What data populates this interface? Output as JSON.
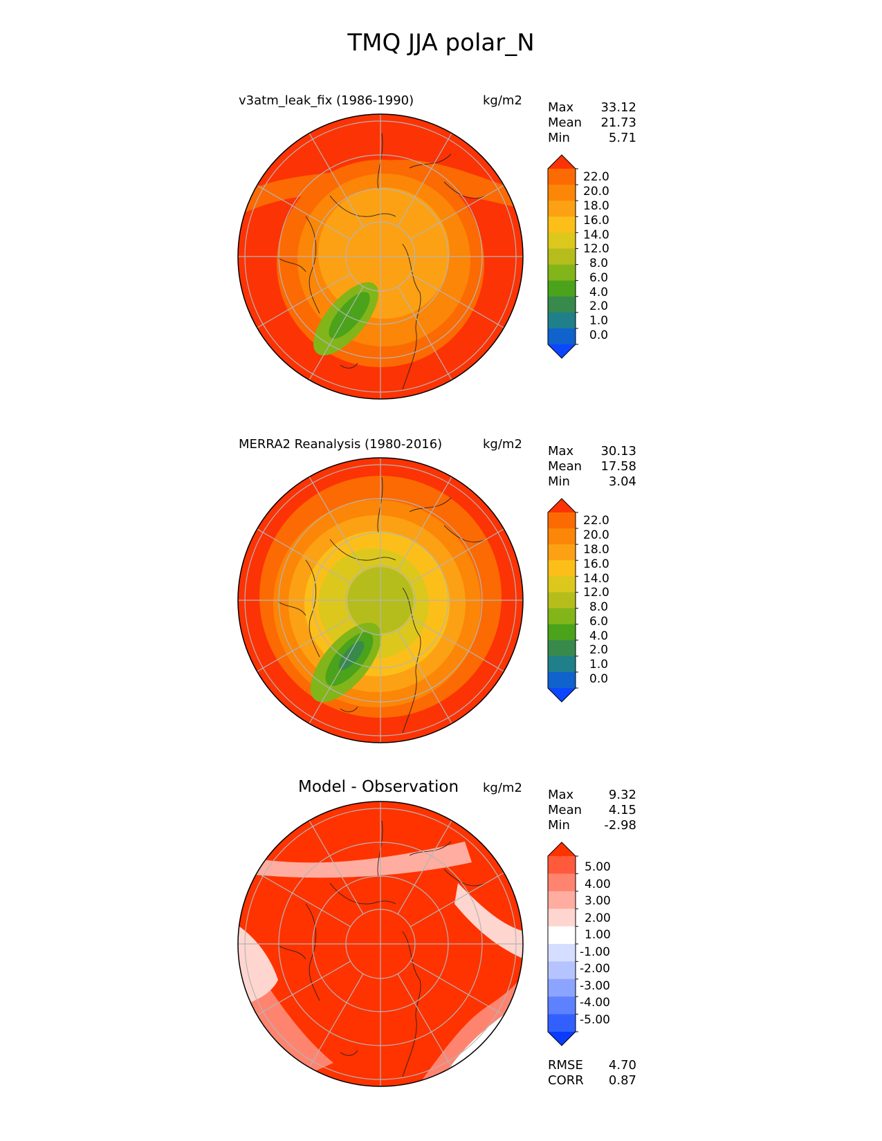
{
  "figure_title": "TMQ JJA polar_N",
  "colors": {
    "seq": [
      "#0c47ff",
      "#1062cc",
      "#1f7f8a",
      "#378a4c",
      "#4aa31a",
      "#82b51a",
      "#b5bd1c",
      "#dcc81c",
      "#fcbf19",
      "#fca114",
      "#fc8607",
      "#fc6a03",
      "#fc3304"
    ],
    "diff": [
      "#0a3bff",
      "#3160ff",
      "#5d81ff",
      "#8ba4ff",
      "#b5c4ff",
      "#d6deff",
      "#ffffff",
      "#ffd6cf",
      "#ffada0",
      "#ff8470",
      "#ff5a3c",
      "#ff3300"
    ]
  },
  "chart_data": [
    {
      "type": "heatmap",
      "name": "test",
      "title": "v3atm_leak_fix (1986-1990)",
      "units": "kg/m2",
      "stats": [
        {
          "label": "Max",
          "value": "33.12"
        },
        {
          "label": "Mean",
          "value": "21.73"
        },
        {
          "label": "Min",
          "value": "5.71"
        }
      ],
      "colorbar_ticks": [
        "22.0",
        "20.0",
        "18.0",
        "16.0",
        "14.0",
        "12.0",
        "8.0",
        "6.0",
        "4.0",
        "2.0",
        "1.0",
        "0.0"
      ],
      "projection": "north polar stereographic",
      "colormap": "seq"
    },
    {
      "type": "heatmap",
      "name": "reference",
      "title": "MERRA2 Reanalysis (1980-2016)",
      "units": "kg/m2",
      "stats": [
        {
          "label": "Max",
          "value": "30.13"
        },
        {
          "label": "Mean",
          "value": "17.58"
        },
        {
          "label": "Min",
          "value": "3.04"
        }
      ],
      "colorbar_ticks": [
        "22.0",
        "20.0",
        "18.0",
        "16.0",
        "14.0",
        "12.0",
        "8.0",
        "6.0",
        "4.0",
        "2.0",
        "1.0",
        "0.0"
      ],
      "projection": "north polar stereographic",
      "colormap": "seq"
    },
    {
      "type": "heatmap",
      "name": "diff",
      "title": "Model - Observation",
      "units": "kg/m2",
      "stats": [
        {
          "label": "Max",
          "value": "9.32"
        },
        {
          "label": "Mean",
          "value": "4.15"
        },
        {
          "label": "Min",
          "value": "-2.98"
        }
      ],
      "extra_stats": [
        {
          "label": "RMSE",
          "value": "4.70"
        },
        {
          "label": "CORR",
          "value": "0.87"
        }
      ],
      "colorbar_ticks": [
        "5.00",
        "4.00",
        "3.00",
        "2.00",
        "1.00",
        "-1.00",
        "-2.00",
        "-3.00",
        "-4.00",
        "-5.00"
      ],
      "projection": "north polar stereographic",
      "colormap": "diff"
    }
  ]
}
